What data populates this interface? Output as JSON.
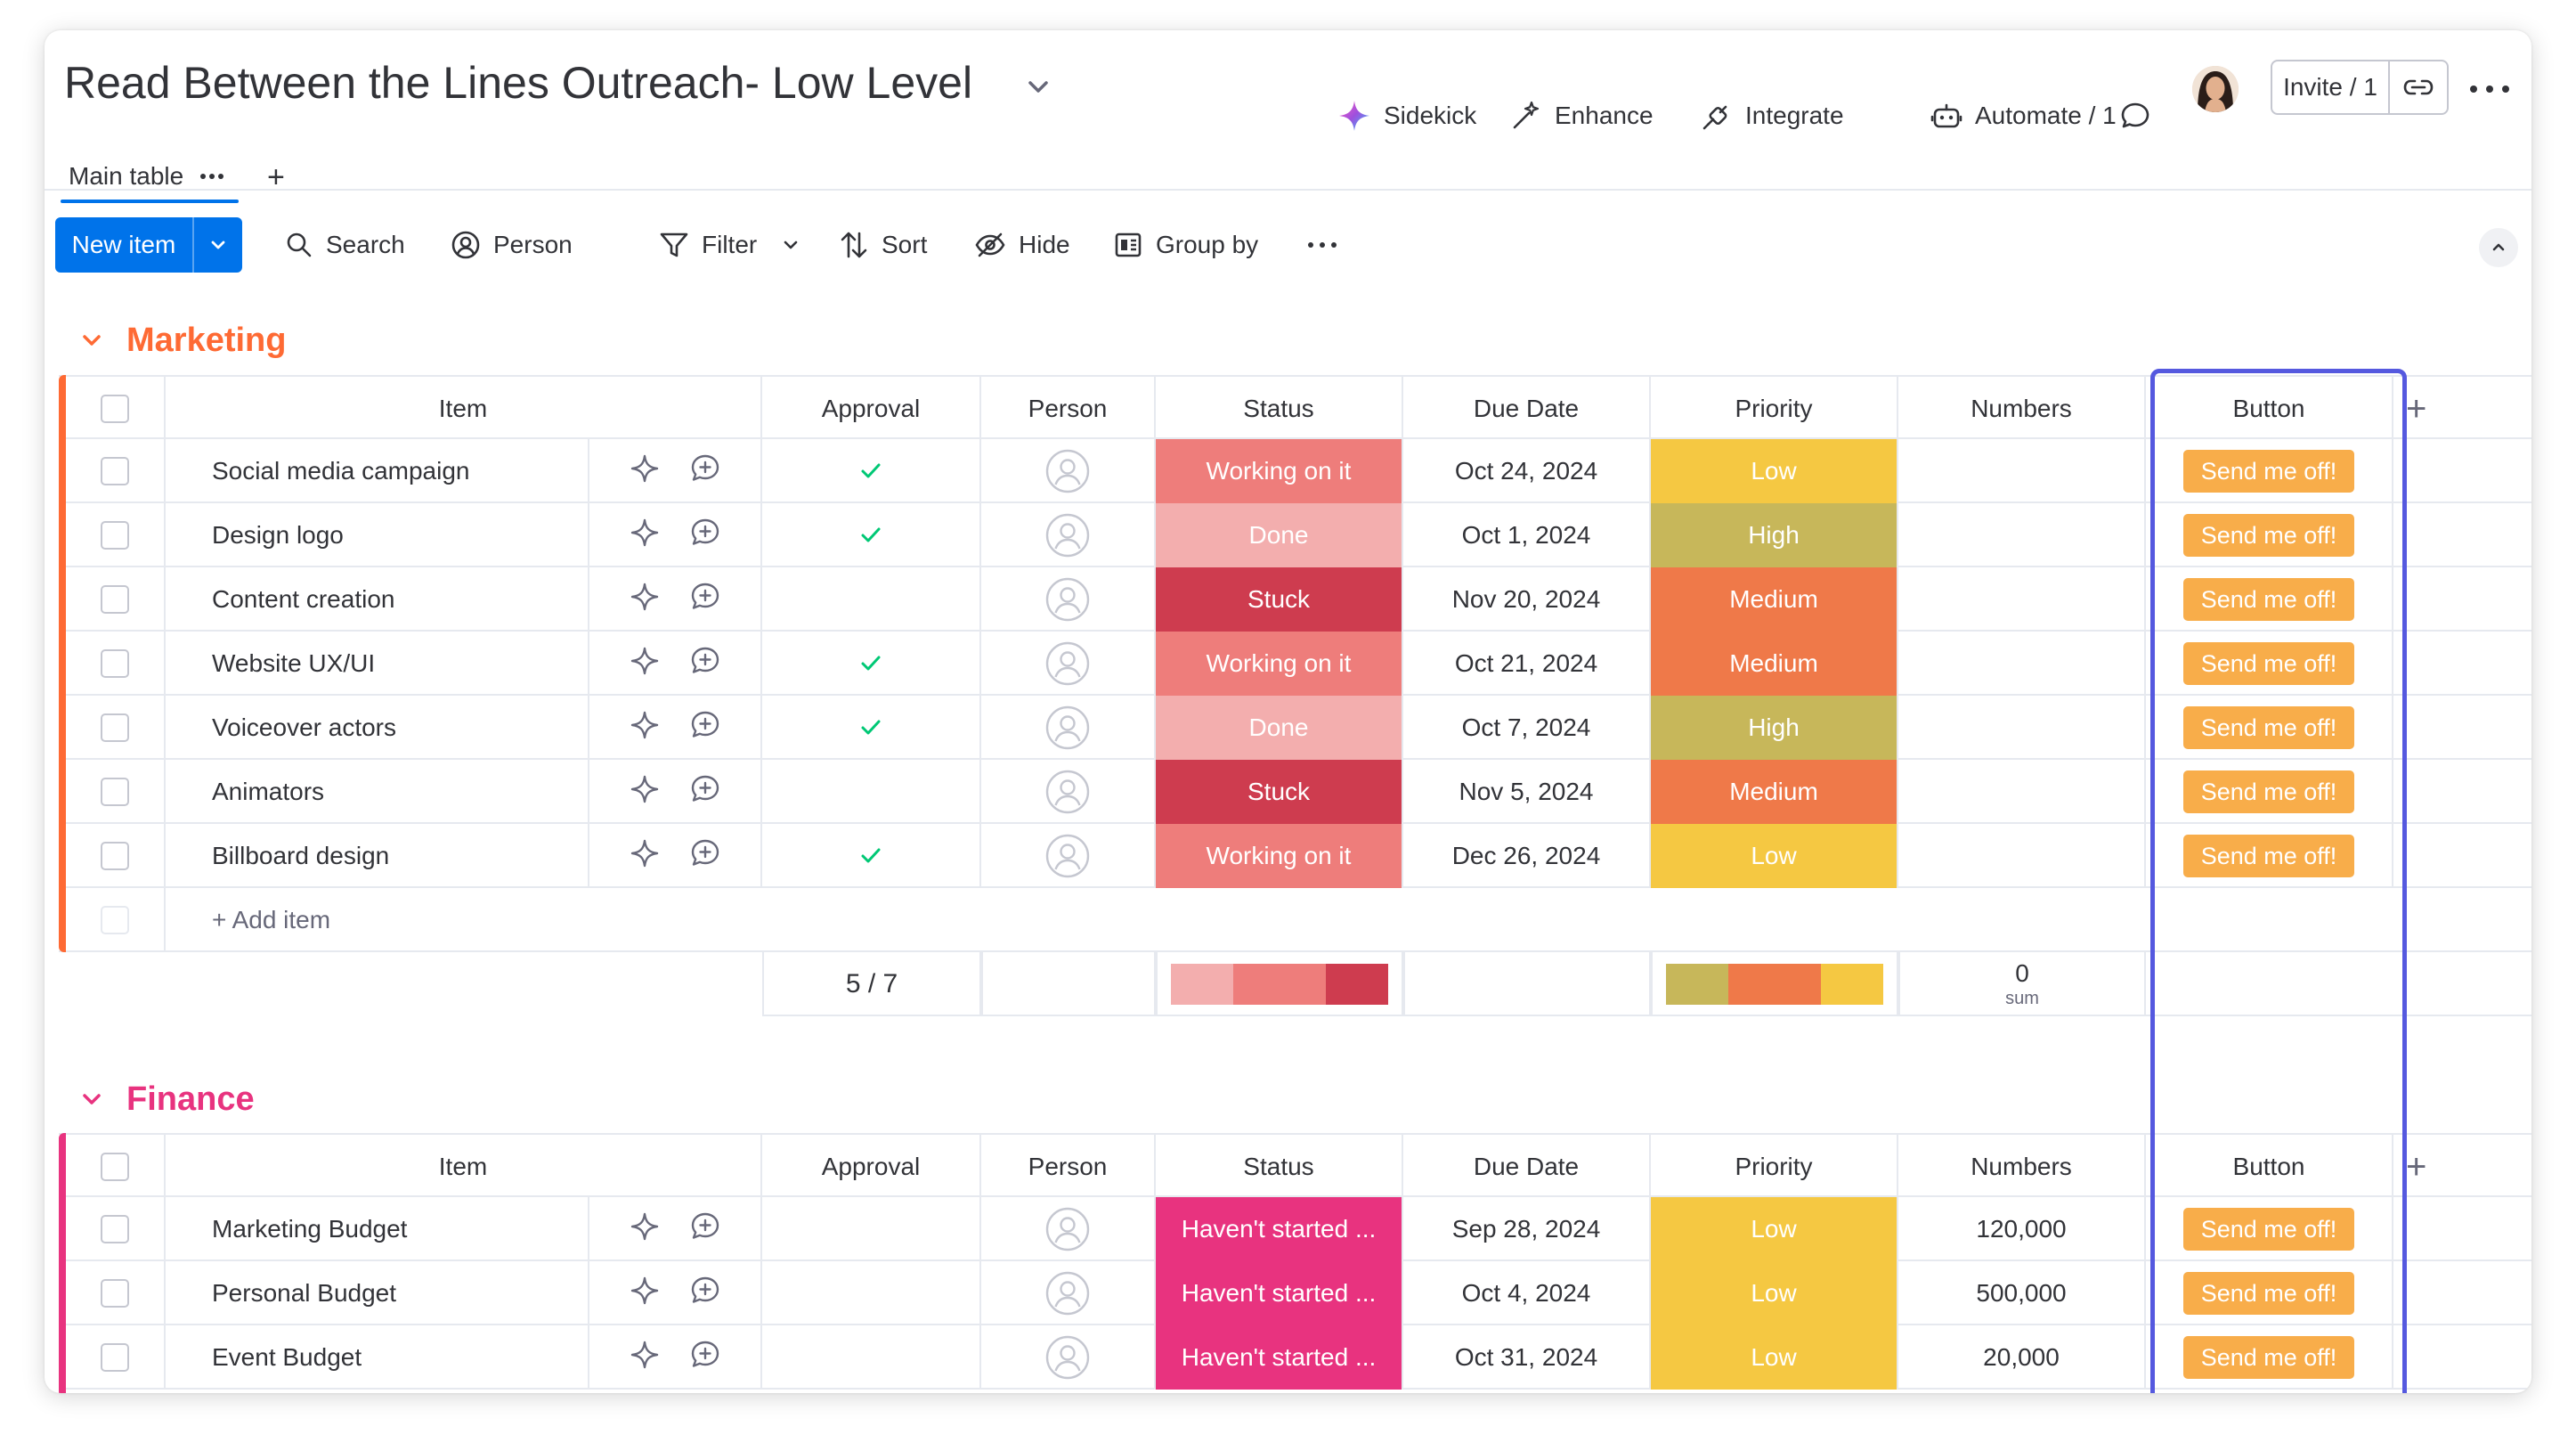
{
  "board": {
    "title": "Read Between the Lines Outreach- Low Level"
  },
  "header_actions": {
    "sidekick": "Sidekick",
    "enhance": "Enhance",
    "integrate": "Integrate",
    "automate": "Automate / 1",
    "invite": "Invite / 1"
  },
  "tabs": {
    "main_table": "Main table",
    "add": "+"
  },
  "toolbar": {
    "new_item": "New item",
    "search": "Search",
    "person": "Person",
    "filter": "Filter",
    "sort": "Sort",
    "hide": "Hide",
    "group_by": "Group by"
  },
  "columns": {
    "item": "Item",
    "approval": "Approval",
    "person": "Person",
    "status": "Status",
    "due_date": "Due Date",
    "priority": "Priority",
    "numbers": "Numbers",
    "button": "Button",
    "add": "+"
  },
  "colors": {
    "marketing": "#fe6a34",
    "finance": "#e8337f",
    "working_on_it": "#ee7d7b",
    "done": "#f3aeae",
    "stuck": "#ce3c4f",
    "havent_started": "#e8337f",
    "low": "#f5c842",
    "high": "#c7b75a",
    "medium": "#ef7949",
    "button": "#f8ad4a",
    "highlight": "#5559df",
    "check": "#00c875"
  },
  "groups": {
    "marketing": {
      "title": "Marketing",
      "add_item": "+ Add item",
      "rows": [
        {
          "item": "Social media campaign",
          "approved": true,
          "status": "Working on it",
          "due": "Oct 24, 2024",
          "priority": "Low",
          "numbers": "",
          "button": "Send me off!"
        },
        {
          "item": "Design logo",
          "approved": true,
          "status": "Done",
          "due": "Oct 1, 2024",
          "priority": "High",
          "numbers": "",
          "button": "Send me off!"
        },
        {
          "item": "Content creation",
          "approved": false,
          "status": "Stuck",
          "due": "Nov 20, 2024",
          "priority": "Medium",
          "numbers": "",
          "button": "Send me off!"
        },
        {
          "item": "Website UX/UI",
          "approved": true,
          "status": "Working on it",
          "due": "Oct 21, 2024",
          "priority": "Medium",
          "numbers": "",
          "button": "Send me off!"
        },
        {
          "item": "Voiceover actors",
          "approved": true,
          "status": "Done",
          "due": "Oct 7, 2024",
          "priority": "High",
          "numbers": "",
          "button": "Send me off!"
        },
        {
          "item": "Animators",
          "approved": false,
          "status": "Stuck",
          "due": "Nov 5, 2024",
          "priority": "Medium",
          "numbers": "",
          "button": "Send me off!"
        },
        {
          "item": "Billboard design",
          "approved": true,
          "status": "Working on it",
          "due": "Dec 26, 2024",
          "priority": "Low",
          "numbers": "",
          "button": "Send me off!"
        }
      ],
      "summary": {
        "approval": "5 / 7",
        "numbers_value": "0",
        "numbers_label": "sum",
        "status_bar": [
          {
            "label": "Done",
            "fraction": 0.286
          },
          {
            "label": "Working on it",
            "fraction": 0.429
          },
          {
            "label": "Stuck",
            "fraction": 0.285
          }
        ],
        "priority_bar": [
          {
            "label": "High",
            "fraction": 0.286
          },
          {
            "label": "Medium",
            "fraction": 0.429
          },
          {
            "label": "Low",
            "fraction": 0.285
          }
        ]
      }
    },
    "finance": {
      "title": "Finance",
      "rows": [
        {
          "item": "Marketing Budget",
          "approved": false,
          "status": "Haven't started ...",
          "due": "Sep 28, 2024",
          "priority": "Low",
          "numbers": "120,000",
          "button": "Send me off!"
        },
        {
          "item": "Personal Budget",
          "approved": false,
          "status": "Haven't started ...",
          "due": "Oct 4, 2024",
          "priority": "Low",
          "numbers": "500,000",
          "button": "Send me off!"
        },
        {
          "item": "Event Budget",
          "approved": false,
          "status": "Haven't started ...",
          "due": "Oct 31, 2024",
          "priority": "Low",
          "numbers": "20,000",
          "button": "Send me off!"
        }
      ]
    }
  }
}
